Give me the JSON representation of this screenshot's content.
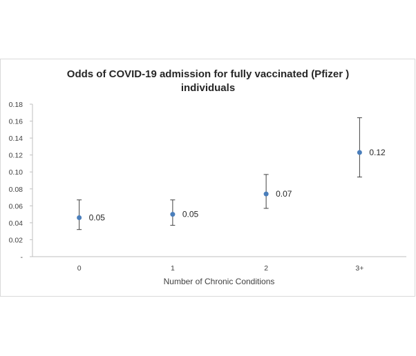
{
  "chart_data": {
    "type": "scatter",
    "title_lines": [
      "Odds of COVID-19 admission for fully vaccinated (Pfizer )",
      "individuals"
    ],
    "xlabel": "Number of Chronic Conditions",
    "ylabel": "",
    "categories": [
      "0",
      "1",
      "2",
      "3+"
    ],
    "values": [
      0.046,
      0.05,
      0.074,
      0.123
    ],
    "error_low": [
      0.032,
      0.037,
      0.057,
      0.094
    ],
    "error_high": [
      0.067,
      0.067,
      0.097,
      0.164
    ],
    "data_labels": [
      "0.05",
      "0.05",
      "0.07",
      "0.12"
    ],
    "ylim": [
      0,
      0.18
    ],
    "y_ticks": [
      {
        "value": 0,
        "label": "-"
      },
      {
        "value": 0.02,
        "label": "0.02"
      },
      {
        "value": 0.04,
        "label": "0.04"
      },
      {
        "value": 0.06,
        "label": "0.06"
      },
      {
        "value": 0.08,
        "label": "0.08"
      },
      {
        "value": 0.1,
        "label": "0.10"
      },
      {
        "value": 0.12,
        "label": "0.12"
      },
      {
        "value": 0.14,
        "label": "0.14"
      },
      {
        "value": 0.16,
        "label": "0.16"
      },
      {
        "value": 0.18,
        "label": "0.18"
      }
    ],
    "grid": false,
    "legend": "none",
    "marker_color": "#4a7ebb",
    "errorbar_color": "#404040"
  }
}
